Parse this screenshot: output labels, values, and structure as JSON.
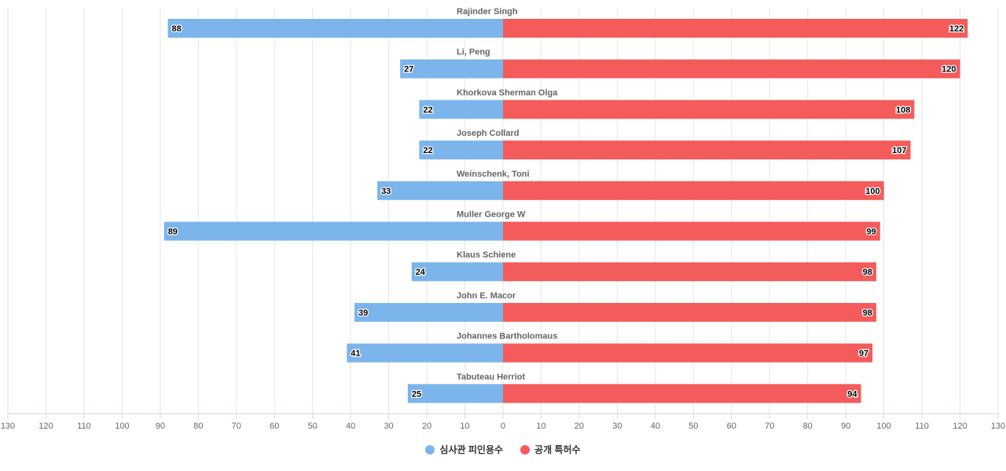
{
  "chart_data": {
    "type": "bar",
    "orientation": "horizontal-diverging",
    "categories": [
      "Rajinder Singh",
      "Li, Peng",
      "Khorkova Sherman Olga",
      "Joseph Collard",
      "Weinschenk, Toni",
      "Muller George W",
      "Klaus Schiene",
      "John E. Macor",
      "Johannes Bartholomaus",
      "Tabuteau Herriot"
    ],
    "series": [
      {
        "name": "심사관 피인용수",
        "color": "#7cb5ec",
        "side": "left",
        "values": [
          88,
          27,
          22,
          22,
          33,
          89,
          24,
          39,
          41,
          25
        ]
      },
      {
        "name": "공개 특허수",
        "color": "#f45b5b",
        "side": "right",
        "values": [
          122,
          120,
          108,
          107,
          100,
          99,
          98,
          98,
          97,
          94
        ]
      }
    ],
    "xlim": [
      -130,
      130
    ],
    "xticks": [
      "130",
      "120",
      "110",
      "100",
      "90",
      "80",
      "70",
      "60",
      "50",
      "40",
      "30",
      "20",
      "10",
      "0",
      "10",
      "20",
      "30",
      "40",
      "50",
      "60",
      "70",
      "80",
      "90",
      "100",
      "110",
      "120",
      "130"
    ],
    "grid": true,
    "legend": "bottom-center"
  }
}
